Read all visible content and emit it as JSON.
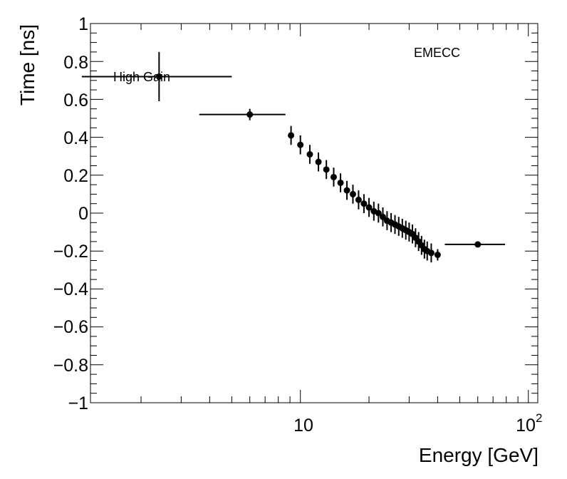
{
  "chart_data": {
    "type": "scatter",
    "xlabel": "Energy [GeV]",
    "ylabel": "Time [ns]",
    "xscale": "log",
    "xlim": [
      1.2,
      110
    ],
    "ylim": [
      -1,
      1
    ],
    "grid": false,
    "legend": "none",
    "annotations": {
      "text": "EMECC",
      "label": "High Gain"
    },
    "x_tick_labels": [
      "10",
      "10",
      "2"
    ],
    "y_tick_labels": [
      "1",
      "0.8",
      "0.6",
      "0.4",
      "0.2",
      "0",
      "−0.2",
      "−0.4",
      "−0.6",
      "−0.8",
      "−1"
    ],
    "y_ticks": [
      1,
      0.8,
      0.6,
      0.4,
      0.2,
      0,
      -0.2,
      -0.4,
      -0.6,
      -0.8,
      -1
    ],
    "series": [
      {
        "marker_color": "#000000",
        "points": [
          {
            "x": 2.4,
            "y": 0.72,
            "xerr_lo": 1.1,
            "xerr_hi": 5.0,
            "yerr": 0.13
          },
          {
            "x": 6.0,
            "y": 0.52,
            "xerr_lo": 3.6,
            "xerr_hi": 8.6,
            "yerr": 0.03
          },
          {
            "x": 9.1,
            "y": 0.41,
            "yerr": 0.05
          },
          {
            "x": 10.0,
            "y": 0.36,
            "yerr": 0.05
          },
          {
            "x": 11.0,
            "y": 0.31,
            "yerr": 0.05
          },
          {
            "x": 12.0,
            "y": 0.27,
            "yerr": 0.05
          },
          {
            "x": 13.0,
            "y": 0.23,
            "yerr": 0.05
          },
          {
            "x": 14.0,
            "y": 0.19,
            "yerr": 0.05
          },
          {
            "x": 15.0,
            "y": 0.16,
            "yerr": 0.05
          },
          {
            "x": 16.0,
            "y": 0.12,
            "yerr": 0.05
          },
          {
            "x": 17.0,
            "y": 0.1,
            "yerr": 0.05
          },
          {
            "x": 18.0,
            "y": 0.07,
            "yerr": 0.05
          },
          {
            "x": 19.0,
            "y": 0.05,
            "yerr": 0.05
          },
          {
            "x": 20.0,
            "y": 0.03,
            "yerr": 0.05
          },
          {
            "x": 21.0,
            "y": 0.01,
            "yerr": 0.05
          },
          {
            "x": 22.0,
            "y": 0.0,
            "yerr": 0.05
          },
          {
            "x": 23.0,
            "y": -0.02,
            "yerr": 0.05
          },
          {
            "x": 24.0,
            "y": -0.04,
            "yerr": 0.05
          },
          {
            "x": 25.0,
            "y": -0.05,
            "yerr": 0.05
          },
          {
            "x": 26.0,
            "y": -0.06,
            "yerr": 0.05
          },
          {
            "x": 27.0,
            "y": -0.07,
            "yerr": 0.05
          },
          {
            "x": 28.0,
            "y": -0.08,
            "yerr": 0.05
          },
          {
            "x": 29.0,
            "y": -0.09,
            "yerr": 0.05
          },
          {
            "x": 30.0,
            "y": -0.1,
            "yerr": 0.05
          },
          {
            "x": 31.0,
            "y": -0.11,
            "yerr": 0.05
          },
          {
            "x": 32.0,
            "y": -0.13,
            "yerr": 0.05
          },
          {
            "x": 33.0,
            "y": -0.15,
            "yerr": 0.05
          },
          {
            "x": 34.0,
            "y": -0.17,
            "yerr": 0.05
          },
          {
            "x": 35.0,
            "y": -0.19,
            "yerr": 0.05
          },
          {
            "x": 36.0,
            "y": -0.2,
            "yerr": 0.05
          },
          {
            "x": 37.5,
            "y": -0.21,
            "yerr": 0.05
          },
          {
            "x": 40.0,
            "y": -0.22,
            "yerr": 0.03
          },
          {
            "x": 60.0,
            "y": -0.165,
            "xerr_lo": 43.0,
            "xerr_hi": 79.0,
            "yerr": 0.01
          }
        ]
      }
    ]
  }
}
